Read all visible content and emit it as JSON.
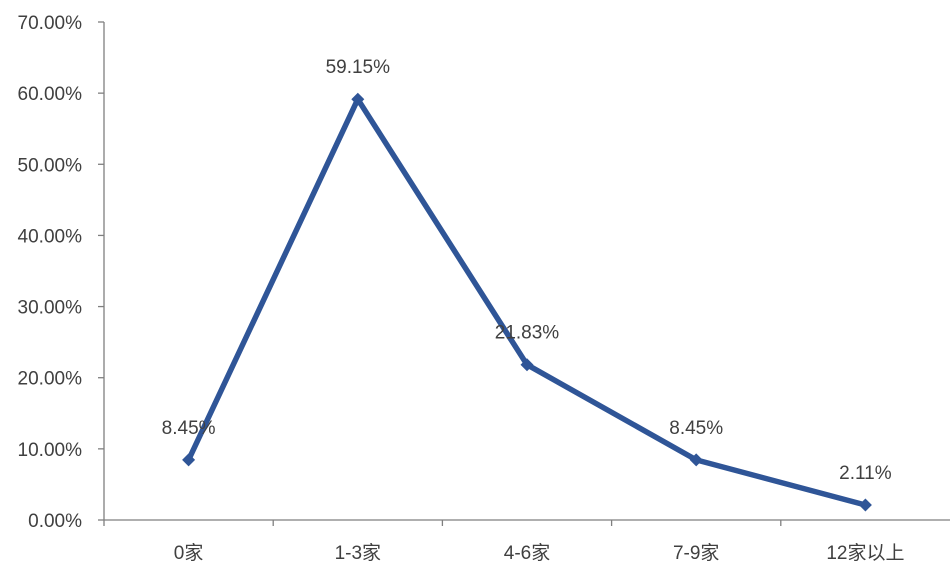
{
  "chart_data": {
    "type": "line",
    "title": "",
    "xlabel": "",
    "ylabel": "",
    "categories": [
      "0家",
      "1-3家",
      "4-6家",
      "7-9家",
      "12家以上"
    ],
    "series": [
      {
        "values": [
          8.45,
          59.15,
          21.83,
          8.45,
          2.11
        ],
        "labels": [
          "8.45%",
          "59.15%",
          "21.83%",
          "8.45%",
          "2.11%"
        ],
        "color": "#2F5597",
        "marker": "diamond"
      }
    ],
    "ylim": [
      0,
      70
    ],
    "yticks": [
      0,
      10,
      20,
      30,
      40,
      50,
      60,
      70
    ],
    "ytick_labels": [
      "0.00%",
      "10.00%",
      "20.00%",
      "30.00%",
      "40.00%",
      "50.00%",
      "60.00%",
      "70.00%"
    ],
    "grid": false,
    "legend": "none"
  }
}
